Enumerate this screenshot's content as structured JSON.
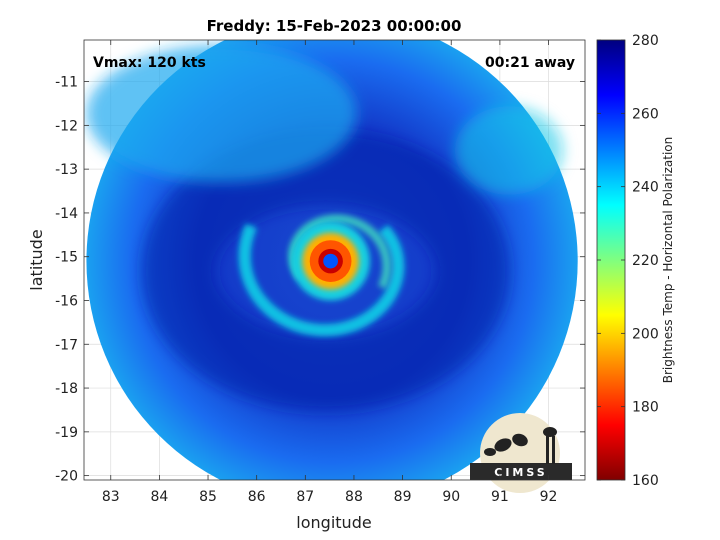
{
  "chart_data": {
    "type": "heatmap",
    "title": "Freddy: 15-Feb-2023 00:00:00",
    "xlabel": "longitude",
    "ylabel": "latitude",
    "xlim": [
      82.45,
      92.75
    ],
    "ylim": [
      -20.1,
      -10.05
    ],
    "xticks": [
      83,
      84,
      85,
      86,
      87,
      88,
      89,
      90,
      91,
      92
    ],
    "xtick_labels": [
      "83",
      "84",
      "85",
      "86",
      "87",
      "88",
      "89",
      "90",
      "91",
      "92"
    ],
    "yticks": [
      -11,
      -12,
      -13,
      -14,
      -15,
      -16,
      -17,
      -18,
      -19,
      -20
    ],
    "ytick_labels": [
      "-11",
      "-12",
      "-13",
      "-14",
      "-15",
      "-16",
      "-17",
      "-18",
      "-19",
      "-20"
    ],
    "grid": true,
    "annotations": {
      "vmax": "Vmax: 120 kts",
      "away": "00:21 away"
    },
    "colorbar": {
      "label": "Brightness Temp - Horizontal Polarization",
      "range": [
        160,
        280
      ],
      "ticks": [
        160,
        180,
        200,
        220,
        240,
        260,
        280
      ],
      "tick_labels": [
        "160",
        "180",
        "200",
        "220",
        "240",
        "260",
        "280"
      ],
      "colormap": "jet"
    },
    "swath": {
      "center_lon": 87.55,
      "center_lat": -15.1,
      "radius_lon": 5.05
    },
    "storm": {
      "eye_lon": 87.52,
      "eye_lat": -15.1,
      "eye_temp": 255,
      "eyewall_temp": 185,
      "background_temp": 258,
      "outer_ring_temp": 232
    },
    "logo_text": "CIMSS"
  }
}
